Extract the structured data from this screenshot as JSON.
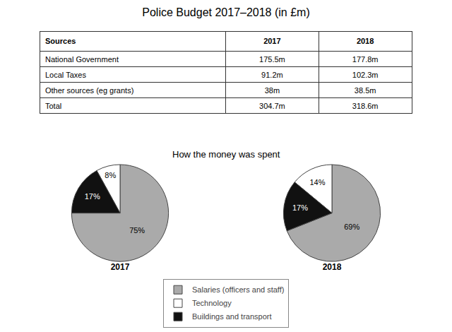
{
  "chart_data": [
    {
      "type": "table",
      "title": "Police Budget 2017–2018 (in £m)",
      "columns": [
        "Sources",
        "2017",
        "2018"
      ],
      "rows": [
        [
          "National Government",
          "175.5m",
          "177.8m"
        ],
        [
          "Local Taxes",
          "91.2m",
          "102.3m"
        ],
        [
          "Other sources (eg grants)",
          "38m",
          "38.5m"
        ],
        [
          "Total",
          "304.7m",
          "318.6m"
        ]
      ]
    },
    {
      "type": "pie",
      "title": "2017",
      "subtitle": "How the money was spent",
      "categories": [
        "Salaries (officers and staff)",
        "Technology",
        "Buildings and transport"
      ],
      "values": [
        75,
        8,
        17
      ],
      "value_labels": [
        "75%",
        "8%",
        "17%"
      ],
      "colors": [
        "#aaaaaa",
        "#ffffff",
        "#111111"
      ],
      "legend": "bottom"
    },
    {
      "type": "pie",
      "title": "2018",
      "categories": [
        "Salaries (officers and staff)",
        "Technology",
        "Buildings and transport"
      ],
      "values": [
        69,
        14,
        17
      ],
      "value_labels": [
        "69%",
        "14%",
        "17%"
      ],
      "colors": [
        "#aaaaaa",
        "#ffffff",
        "#111111"
      ],
      "legend": "bottom"
    }
  ]
}
